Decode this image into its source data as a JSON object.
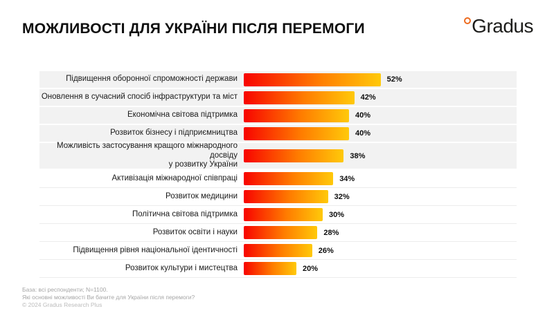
{
  "header": {
    "title": "МОЖЛИВОСТІ ДЛЯ УКРАЇНИ ПІСЛЯ ПЕРЕМОГИ",
    "logo_text": "Gradus"
  },
  "brand": {
    "accent_color": "#ED6A1E",
    "logo_text_color": "#1d1d1b"
  },
  "chart_data": {
    "type": "bar",
    "orientation": "horizontal",
    "categories": [
      "Підвищення оборонної спроможності держави",
      "Оновлення в сучасний спосіб інфраструктури та міст",
      "Економічна світова підтримка",
      "Розвиток бізнесу і підприємництва",
      "Можливість застосування кращого міжнародного досвіду\nу розвитку України",
      "Активізація міжнародної співпраці",
      "Розвиток медицини",
      "Політична світова підтримка",
      "Розвиток освіти і науки",
      "Підвищення рівня національної ідентичності",
      "Розвиток культури і мистецтва"
    ],
    "values": [
      52,
      42,
      40,
      40,
      38,
      34,
      32,
      30,
      28,
      26,
      20
    ],
    "value_suffix": "%",
    "xlim": [
      0,
      100
    ],
    "grid": false,
    "legend": false,
    "data_labels": true,
    "bar_gradient": [
      "#F80400",
      "#FFC90A"
    ],
    "shaded_row_count": 5,
    "shaded_row_color": "#F2F2F2"
  },
  "footer": {
    "base_note": "База: всі респонденти; N=1100.",
    "question": "Які основні можливості Ви бачите для України після перемоги?",
    "copyright": "© 2024 Gradus Research Plus"
  }
}
